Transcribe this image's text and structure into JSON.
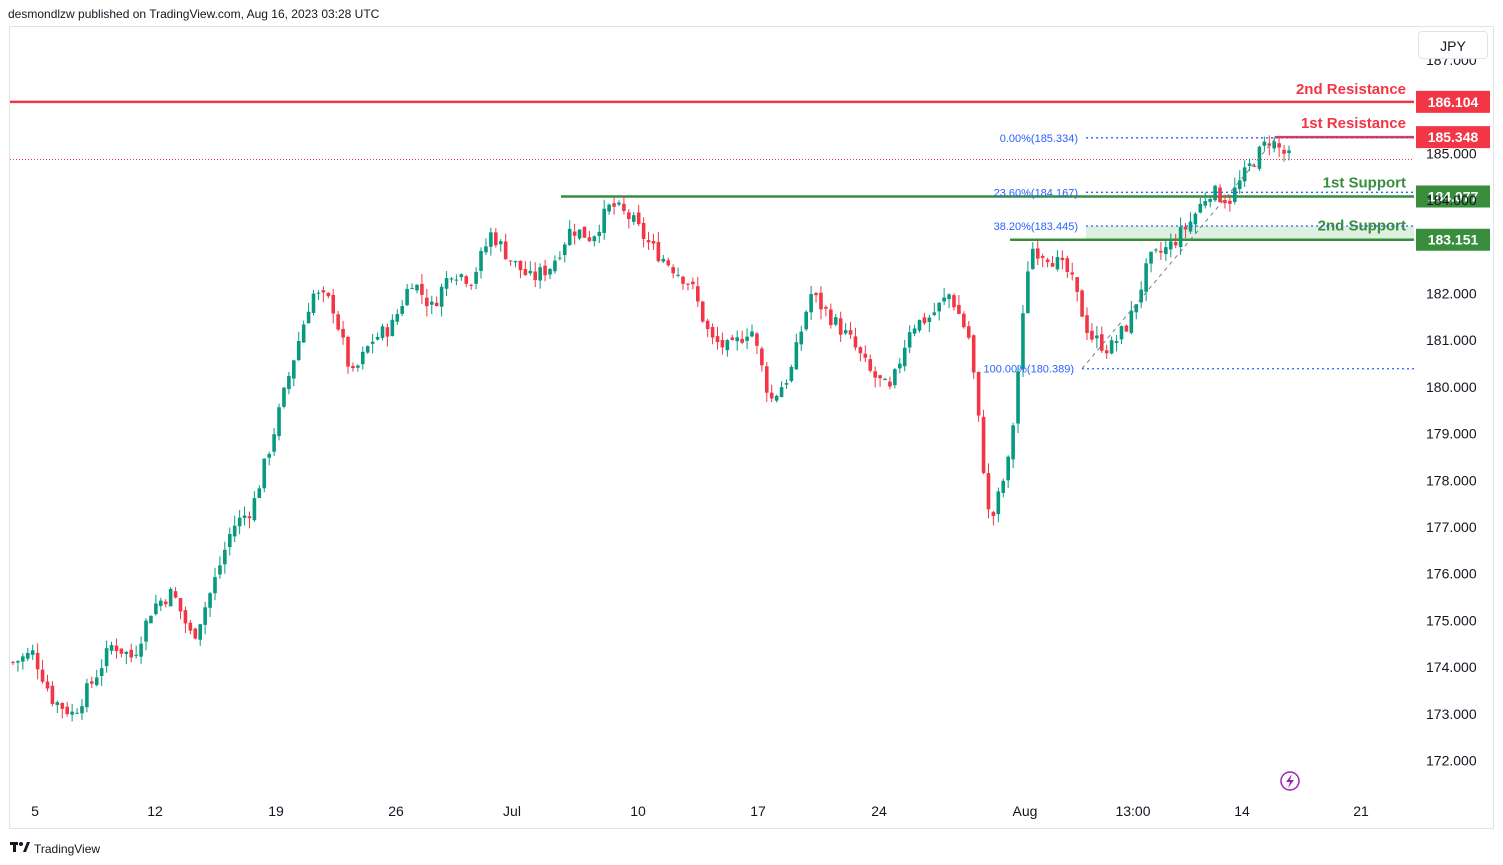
{
  "header": {
    "publisher": "desmondlzw published on TradingView.com, Aug 16, 2023 03:28 UTC"
  },
  "currency": "JPY",
  "footer": {
    "brand": "TradingView"
  },
  "colors": {
    "up": "#089981",
    "down": "#f23645",
    "resistance": "#f23645",
    "support": "#388e3c",
    "fib": "#2962ff",
    "zone": "#c8e6c9",
    "current": "#f23645"
  },
  "chart_data": {
    "type": "candlestick",
    "instrument_quote_currency": "JPY",
    "ylim": [
      171.2,
      187.5
    ],
    "y_ticks": [
      "172.000",
      "173.000",
      "174.000",
      "175.000",
      "176.000",
      "177.000",
      "178.000",
      "179.000",
      "180.000",
      "181.000",
      "182.000",
      "184.000",
      "185.000",
      "187.000"
    ],
    "x_ticks": [
      "5",
      "12",
      "19",
      "26",
      "Jul",
      "10",
      "17",
      "24",
      "Aug",
      "13:00",
      "14",
      "21"
    ],
    "levels": [
      {
        "name": "2nd Resistance",
        "value": "186.104",
        "kind": "resistance"
      },
      {
        "name": "1st Resistance",
        "value": "185.348",
        "kind": "resistance"
      },
      {
        "name": "1st Support",
        "value": "184.077",
        "kind": "support"
      },
      {
        "name": "2nd Support",
        "value": "183.151",
        "kind": "support"
      }
    ],
    "fibonacci": [
      {
        "label": "0.00%(185.334)",
        "value": 185.334
      },
      {
        "label": "23.60%(184.167)",
        "value": 184.167
      },
      {
        "label": "38.20%(183.445)",
        "value": 183.445
      },
      {
        "label": "100.00%(180.389)",
        "value": 180.389
      }
    ],
    "current_price": 184.87,
    "close_path": [
      174.1,
      174.3,
      173.3,
      173.0,
      173.7,
      174.5,
      174.2,
      175.3,
      175.6,
      174.6,
      175.7,
      177.0,
      177.4,
      178.9,
      180.5,
      182.0,
      181.8,
      180.2,
      181.0,
      181.3,
      182.3,
      181.7,
      182.5,
      182.3,
      183.3,
      182.7,
      182.3,
      182.6,
      183.4,
      183.2,
      183.9,
      183.6,
      183.0,
      182.6,
      182.2,
      181.0,
      180.8,
      181.3,
      179.7,
      180.3,
      182.0,
      181.5,
      181.0,
      180.3,
      179.9,
      181.3,
      181.5,
      182.0,
      181.0,
      177.0,
      178.5,
      183.0,
      182.8,
      182.4,
      181.1,
      180.8,
      181.4,
      182.7,
      183.0,
      183.5,
      184.2,
      184.0,
      184.7,
      185.3,
      184.9
    ],
    "candle_count": 260
  }
}
